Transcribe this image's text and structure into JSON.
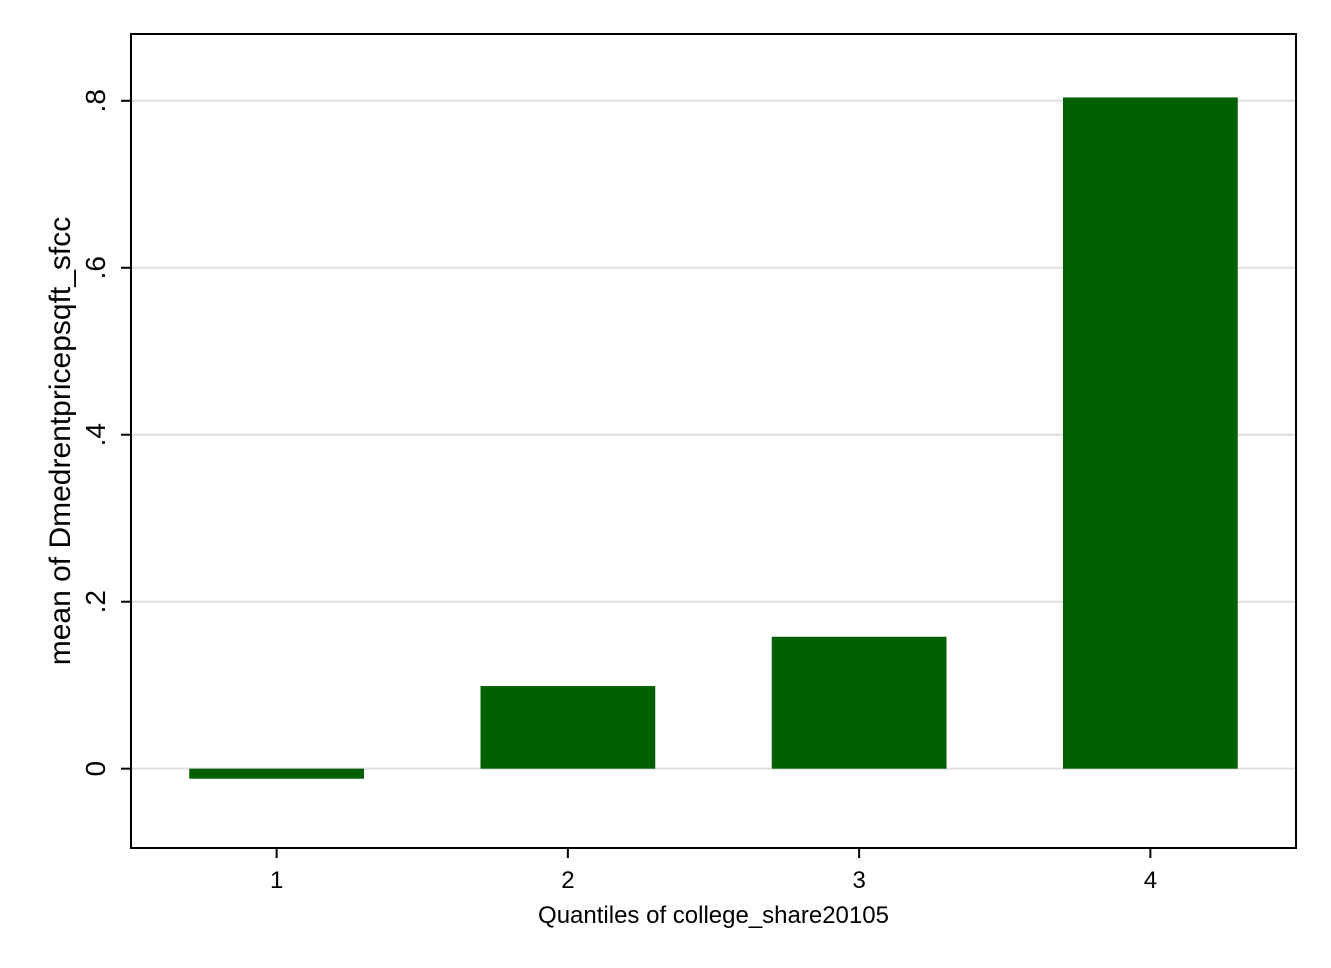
{
  "chart_data": {
    "type": "bar",
    "categories": [
      "1",
      "2",
      "3",
      "4"
    ],
    "values": [
      -0.012,
      0.099,
      0.158,
      0.804
    ],
    "title": "",
    "xlabel": "Quantiles of college_share20105",
    "ylabel": "mean of Dmedrentpricepsqft_sfcc",
    "ylim": [
      -0.095,
      0.88
    ],
    "yticks": [
      0,
      0.2,
      0.4,
      0.6,
      0.8
    ],
    "ytick_labels": [
      "0",
      ".2",
      ".4",
      ".6",
      ".8"
    ],
    "grid": true,
    "legend": "none",
    "bar_color": "#006000",
    "grid_color": "#dedede"
  }
}
